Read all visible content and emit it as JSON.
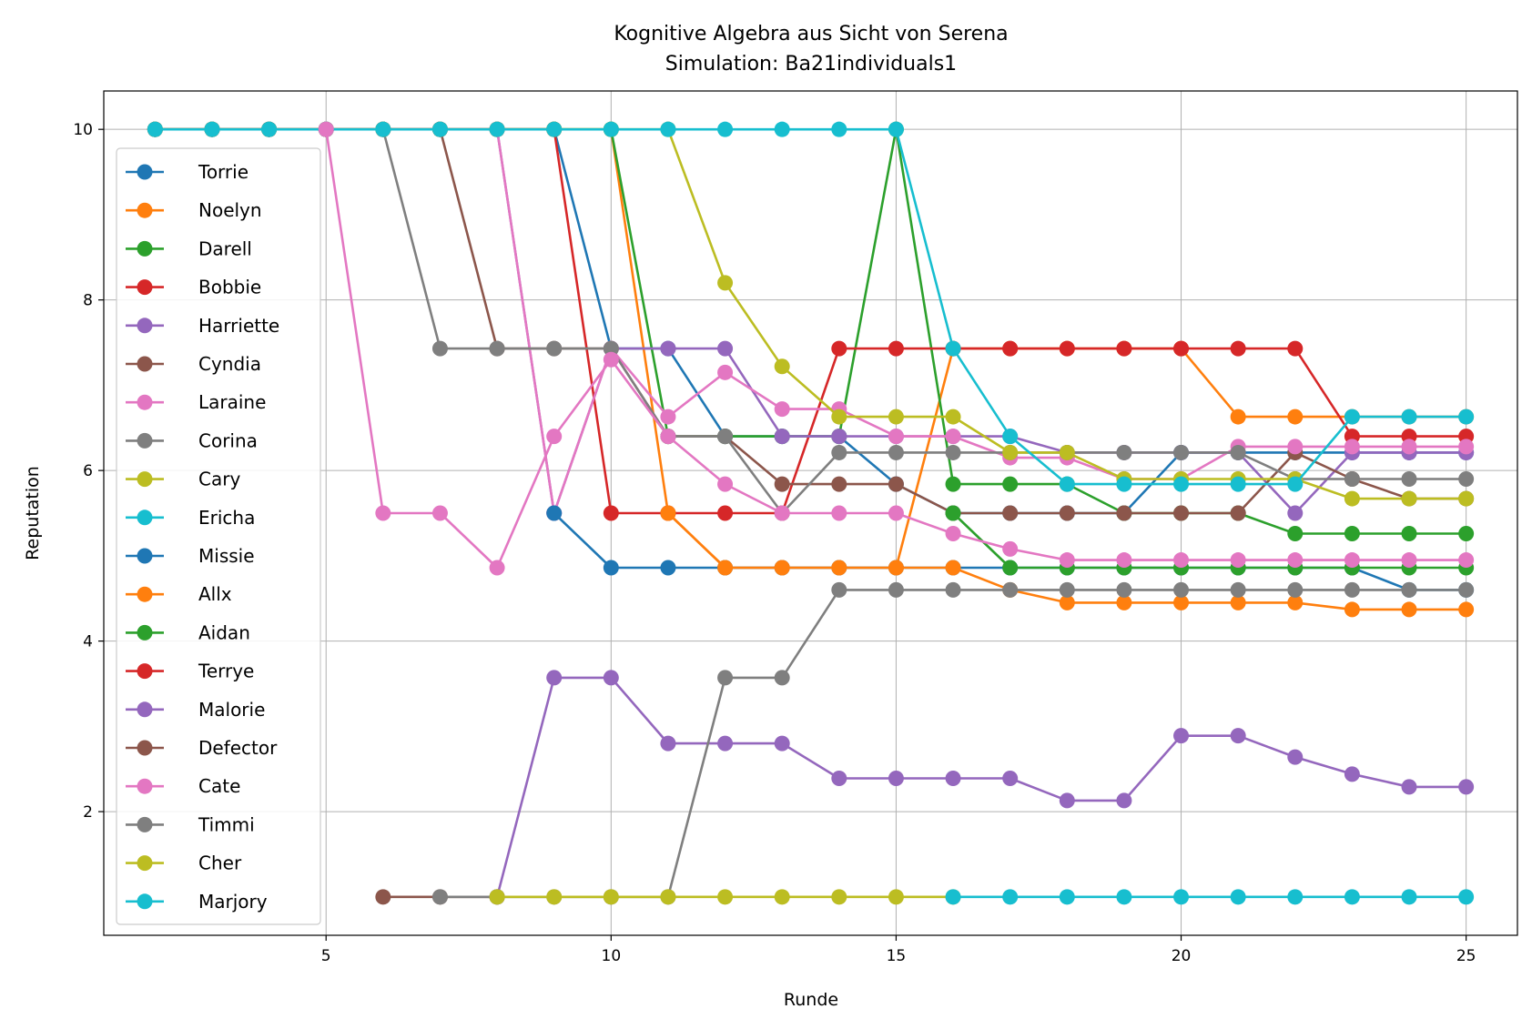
{
  "chart_data": {
    "type": "line",
    "title": "Kognitive Algebra aus Sicht von Serena",
    "subtitle": "Simulation: Ba21individuals1",
    "xlabel": "Runde",
    "ylabel": "Reputation",
    "xlim": [
      1.1,
      25.9
    ],
    "ylim": [
      0.55,
      10.45
    ],
    "xticks": [
      5,
      10,
      15,
      20,
      25
    ],
    "yticks": [
      2,
      4,
      6,
      8,
      10
    ],
    "grid": true,
    "legend_position": "left",
    "series": [
      {
        "name": "Torrie",
        "color": "#1f77b4",
        "x": [
          2,
          3,
          4,
          5,
          6,
          7,
          8,
          9,
          10,
          11,
          12,
          13,
          14,
          15,
          16,
          17,
          18,
          19,
          20,
          21,
          22,
          23,
          24,
          25
        ],
        "values": [
          10,
          10,
          10,
          10,
          10,
          10,
          10,
          10,
          7.43,
          7.43,
          6.4,
          6.4,
          6.4,
          5.84,
          5.5,
          5.5,
          5.5,
          5.5,
          6.21,
          6.21,
          6.21,
          6.21,
          6.21,
          6.21
        ]
      },
      {
        "name": "Noelyn",
        "color": "#ff7f0e",
        "x": [
          2,
          3,
          4,
          5,
          6,
          7,
          8,
          9,
          10,
          11,
          12,
          13,
          14,
          15,
          16,
          17,
          18,
          19,
          20,
          21,
          22,
          23,
          24,
          25
        ],
        "values": [
          10,
          10,
          10,
          10,
          10,
          10,
          10,
          10,
          10,
          5.5,
          4.86,
          4.86,
          4.86,
          4.86,
          7.43,
          7.43,
          7.43,
          7.43,
          7.43,
          6.63,
          6.63,
          6.63,
          6.63,
          6.63
        ]
      },
      {
        "name": "Darell",
        "color": "#2ca02c",
        "x": [
          2,
          3,
          4,
          5,
          6,
          7,
          8,
          9,
          10,
          11,
          12,
          13,
          14,
          15,
          16,
          17,
          18,
          19,
          20,
          21,
          22,
          23,
          24,
          25
        ],
        "values": [
          10,
          10,
          10,
          10,
          10,
          10,
          10,
          10,
          10,
          6.4,
          6.4,
          6.4,
          6.4,
          10,
          5.84,
          5.84,
          5.84,
          5.5,
          5.5,
          5.5,
          5.26,
          5.26,
          5.26,
          5.26
        ]
      },
      {
        "name": "Bobbie",
        "color": "#d62728",
        "x": [
          2,
          3,
          4,
          5,
          6,
          7,
          8,
          9,
          10,
          11,
          12,
          13,
          14,
          15,
          16,
          17,
          18,
          19,
          20,
          21,
          22,
          23,
          24,
          25
        ],
        "values": [
          10,
          10,
          10,
          10,
          10,
          10,
          10,
          10,
          5.5,
          5.5,
          5.5,
          5.5,
          7.43,
          7.43,
          7.43,
          7.43,
          7.43,
          7.43,
          7.43,
          7.43,
          7.43,
          6.4,
          6.4,
          6.4
        ]
      },
      {
        "name": "Harriette",
        "color": "#9467bd",
        "x": [
          2,
          3,
          4,
          5,
          6,
          7,
          8,
          9,
          10,
          11,
          12,
          13,
          14,
          15,
          16,
          17,
          18,
          19,
          20,
          21,
          22,
          23,
          24,
          25
        ],
        "values": [
          10,
          10,
          10,
          10,
          10,
          10,
          10,
          5.5,
          7.43,
          7.43,
          7.43,
          6.4,
          6.4,
          6.4,
          6.4,
          6.4,
          6.21,
          6.21,
          6.21,
          6.21,
          5.5,
          6.21,
          6.21,
          6.21
        ]
      },
      {
        "name": "Cyndia",
        "color": "#8c564b",
        "x": [
          2,
          3,
          4,
          5,
          6,
          7,
          8,
          9,
          10,
          11,
          12,
          13,
          14,
          15,
          16,
          17,
          18,
          19,
          20,
          21,
          22,
          23,
          24,
          25
        ],
        "values": [
          10,
          10,
          10,
          10,
          10,
          10,
          7.43,
          7.43,
          7.43,
          6.4,
          6.4,
          5.84,
          5.84,
          5.84,
          5.5,
          5.5,
          5.5,
          5.5,
          5.5,
          5.5,
          6.21,
          5.9,
          5.67,
          5.67
        ]
      },
      {
        "name": "Laraine",
        "color": "#e377c2",
        "x": [
          2,
          3,
          4,
          5,
          6,
          7,
          8,
          9,
          10,
          11,
          12,
          13,
          14,
          15,
          16,
          17,
          18,
          19,
          20,
          21,
          22,
          23,
          24,
          25
        ],
        "values": [
          10,
          10,
          10,
          10,
          10,
          10,
          10,
          5.5,
          7.43,
          6.63,
          7.15,
          6.72,
          6.72,
          6.4,
          6.4,
          6.15,
          6.15,
          5.9,
          5.9,
          6.28,
          6.28,
          6.28,
          6.28,
          6.28
        ]
      },
      {
        "name": "Corina",
        "color": "#7f7f7f",
        "x": [
          2,
          3,
          4,
          5,
          6,
          7,
          8,
          9,
          10,
          11,
          12,
          13,
          14,
          15,
          16,
          17,
          18,
          19,
          20,
          21,
          22,
          23,
          24,
          25
        ],
        "values": [
          10,
          10,
          10,
          10,
          10,
          7.43,
          7.43,
          7.43,
          7.43,
          6.4,
          6.4,
          5.5,
          6.21,
          6.21,
          6.21,
          6.21,
          6.21,
          6.21,
          6.21,
          6.21,
          5.9,
          5.9,
          5.9,
          5.9
        ]
      },
      {
        "name": "Cary",
        "color": "#bcbd22",
        "x": [
          2,
          3,
          4,
          5,
          6,
          7,
          8,
          9,
          10,
          11,
          12,
          13,
          14,
          15,
          16,
          17,
          18,
          19,
          20,
          21,
          22,
          23,
          24,
          25
        ],
        "values": [
          10,
          10,
          10,
          10,
          10,
          10,
          10,
          10,
          10,
          10,
          8.2,
          7.22,
          6.63,
          6.63,
          6.63,
          6.21,
          6.21,
          5.9,
          5.9,
          5.9,
          5.9,
          5.67,
          5.67,
          5.67
        ]
      },
      {
        "name": "Ericha",
        "color": "#17becf",
        "x": [
          2,
          3,
          4,
          5,
          6,
          7,
          8,
          9,
          10,
          11,
          12,
          13,
          14,
          15,
          16,
          17,
          18,
          19,
          20,
          21,
          22,
          23,
          24,
          25
        ],
        "values": [
          10,
          10,
          10,
          10,
          10,
          10,
          10,
          10,
          10,
          10,
          10,
          10,
          10,
          10,
          7.43,
          6.4,
          5.84,
          5.84,
          5.84,
          5.84,
          5.84,
          6.63,
          6.63,
          6.63
        ]
      },
      {
        "name": "Missie",
        "color": "#1f77b4",
        "x": [
          9,
          10,
          11,
          12,
          13,
          14,
          15,
          16,
          17,
          18,
          19,
          20,
          21,
          22,
          23,
          24,
          25
        ],
        "values": [
          5.5,
          4.86,
          4.86,
          4.86,
          4.86,
          4.86,
          4.86,
          4.86,
          4.86,
          4.86,
          4.86,
          4.86,
          4.86,
          4.86,
          4.86,
          4.6,
          4.6
        ]
      },
      {
        "name": "Allx",
        "color": "#ff7f0e",
        "x": [
          11,
          12,
          13,
          14,
          15,
          16,
          17,
          18,
          19,
          20,
          21,
          22,
          23,
          24,
          25
        ],
        "values": [
          5.5,
          4.86,
          4.86,
          4.86,
          4.86,
          4.86,
          4.6,
          4.45,
          4.45,
          4.45,
          4.45,
          4.45,
          4.37,
          4.37,
          4.37
        ]
      },
      {
        "name": "Aidan",
        "color": "#2ca02c",
        "x": [
          16,
          17,
          18,
          19,
          20,
          21,
          22,
          23,
          24,
          25
        ],
        "values": [
          5.5,
          4.86,
          4.86,
          4.86,
          4.86,
          4.86,
          4.86,
          4.86,
          4.86,
          4.86
        ]
      },
      {
        "name": "Terrye",
        "color": "#d62728",
        "x": [],
        "values": []
      },
      {
        "name": "Malorie",
        "color": "#9467bd",
        "x": [
          8,
          9,
          10,
          11,
          12,
          13,
          14,
          15,
          16,
          17,
          18,
          19,
          20,
          21,
          22,
          23,
          24,
          25
        ],
        "values": [
          1,
          3.57,
          3.57,
          2.8,
          2.8,
          2.8,
          2.39,
          2.39,
          2.39,
          2.39,
          2.13,
          2.13,
          2.89,
          2.89,
          2.64,
          2.44,
          2.29,
          2.29
        ]
      },
      {
        "name": "Defector",
        "color": "#8c564b",
        "x": [
          6,
          7,
          8
        ],
        "values": [
          1,
          1,
          1
        ]
      },
      {
        "name": "Cate",
        "color": "#e377c2",
        "x": [
          5,
          6,
          7,
          8,
          9,
          10,
          11,
          12,
          13,
          14,
          15,
          16,
          17,
          18,
          19,
          20,
          21,
          22,
          23,
          24,
          25
        ],
        "values": [
          10,
          5.5,
          5.5,
          4.86,
          6.4,
          7.3,
          6.4,
          5.84,
          5.5,
          5.5,
          5.5,
          5.26,
          5.08,
          4.95,
          4.95,
          4.95,
          4.95,
          4.95,
          4.95,
          4.95,
          4.95
        ]
      },
      {
        "name": "Timmi",
        "color": "#7f7f7f",
        "x": [
          7,
          8,
          9,
          10,
          11,
          12,
          13,
          14,
          15,
          16,
          17,
          18,
          19,
          20,
          21,
          22,
          23,
          24,
          25
        ],
        "values": [
          1,
          1,
          1,
          1,
          1,
          3.57,
          3.57,
          4.6,
          4.6,
          4.6,
          4.6,
          4.6,
          4.6,
          4.6,
          4.6,
          4.6,
          4.6,
          4.6,
          4.6
        ]
      },
      {
        "name": "Cher",
        "color": "#bcbd22",
        "x": [
          8,
          9,
          10,
          11,
          12,
          13,
          14,
          15,
          16
        ],
        "values": [
          1,
          1,
          1,
          1,
          1,
          1,
          1,
          1,
          1
        ]
      },
      {
        "name": "Marjory",
        "color": "#17becf",
        "x": [
          16,
          17,
          18,
          19,
          20,
          21,
          22,
          23,
          24,
          25
        ],
        "values": [
          1,
          1,
          1,
          1,
          1,
          1,
          1,
          1,
          1,
          1
        ]
      }
    ]
  }
}
